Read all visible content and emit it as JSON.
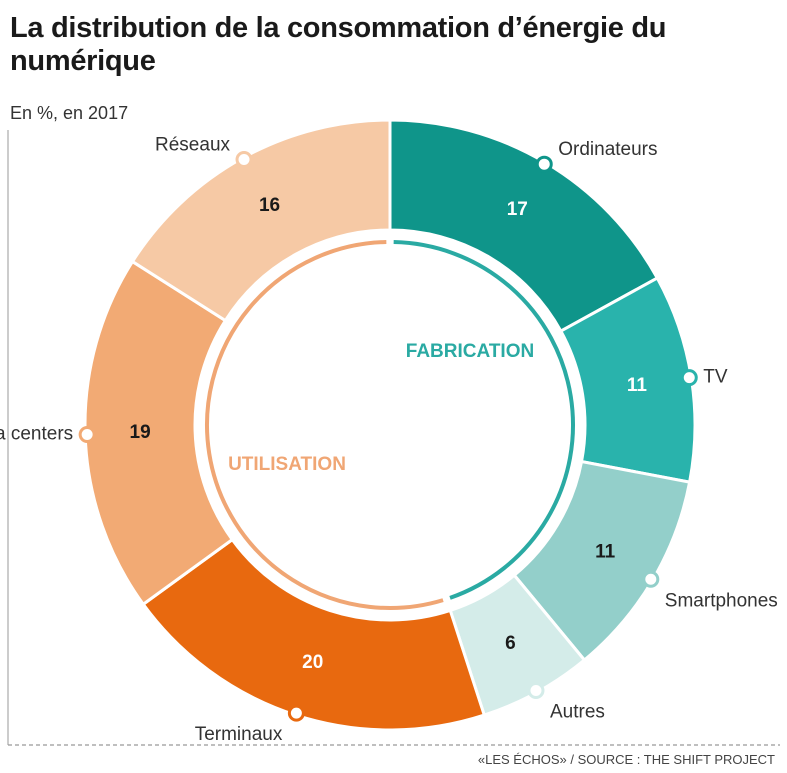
{
  "chart_data": {
    "type": "donut",
    "title": "La distribution de la consommation d’énergie du numérique",
    "subtitle": "En %, en 2017",
    "source": "«LES ÉCHOS» / SOURCE : THE SHIFT PROJECT",
    "series": [
      {
        "name": "FABRICATION",
        "color": "#2aaaa3",
        "categories": [
          "Ordinateurs",
          "TV",
          "Smartphones",
          "Autres"
        ],
        "values": [
          17,
          11,
          11,
          6
        ],
        "colors": [
          "#0f958a",
          "#29b3ac",
          "#93cfca",
          "#d4ece9"
        ]
      },
      {
        "name": "UTILISATION",
        "color": "#f0a674",
        "categories": [
          "Terminaux",
          "Data centers",
          "Réseaux"
        ],
        "values": [
          20,
          19,
          16
        ],
        "colors": [
          "#e8690f",
          "#f2aa74",
          "#f6c9a5"
        ]
      }
    ]
  }
}
